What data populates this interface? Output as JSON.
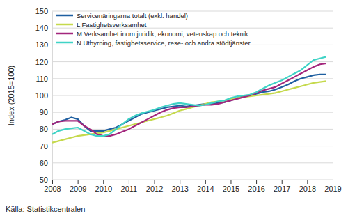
{
  "chart_data": {
    "type": "line",
    "y_label": "Index (2015=100)",
    "source": "Källa: Statistikcentralen",
    "x": [
      2008,
      2008.25,
      2008.5,
      2008.75,
      2009,
      2009.25,
      2009.5,
      2009.75,
      2010,
      2010.25,
      2010.5,
      2010.75,
      2011,
      2011.25,
      2011.5,
      2011.75,
      2012,
      2012.25,
      2012.5,
      2012.75,
      2013,
      2013.25,
      2013.5,
      2013.75,
      2014,
      2014.25,
      2014.5,
      2014.75,
      2015,
      2015.25,
      2015.5,
      2015.75,
      2016,
      2016.25,
      2016.5,
      2016.75,
      2017,
      2017.25,
      2017.5,
      2017.75,
      2018,
      2018.25,
      2018.5,
      2018.75
    ],
    "series": [
      {
        "name": "Servicenäringarna totalt (exkl. handel)",
        "color": "#1f5fa0",
        "values": [
          83,
          84.5,
          85.5,
          87,
          86,
          82,
          79,
          79,
          79,
          80,
          81,
          83,
          85,
          87,
          89,
          90,
          91,
          92,
          93,
          93.5,
          94,
          93.5,
          94,
          94.5,
          95,
          95,
          95.5,
          96,
          97,
          98.5,
          99.5,
          100,
          101,
          102,
          102.5,
          103.5,
          105,
          106.5,
          108.5,
          110,
          111,
          112,
          112.5,
          112.5
        ]
      },
      {
        "name": "L Fastighetsverksamhet",
        "color": "#c5d94c",
        "values": [
          72,
          73,
          74,
          75,
          76,
          76.5,
          77,
          77.5,
          78,
          79,
          80,
          81,
          82,
          83,
          84,
          85,
          86,
          87,
          88,
          89.5,
          91,
          92,
          93,
          94,
          95,
          96,
          96.5,
          97,
          98,
          98.5,
          99,
          99.5,
          100,
          100.5,
          101,
          101.5,
          102.5,
          103.5,
          104.5,
          105.5,
          106.5,
          107.5,
          108,
          108.5
        ]
      },
      {
        "name": "M Verksamhet inom juridik, ekonomi, vetenskap och teknik",
        "color": "#a3267c",
        "values": [
          83,
          84.5,
          85,
          85,
          85,
          82,
          80,
          77,
          76,
          76,
          77,
          78.5,
          80,
          82,
          84,
          86,
          88,
          90,
          91.5,
          92.5,
          93,
          93,
          93.5,
          94,
          94.5,
          94.5,
          95,
          96,
          97,
          98,
          99,
          100,
          101.5,
          103,
          104,
          105,
          107,
          109,
          111,
          113,
          115,
          117,
          118.5,
          119
        ]
      },
      {
        "name": "N Uthyrning, fastighetsservice, rese- och andra stödtjänster",
        "color": "#3fd3c6",
        "values": [
          77,
          79,
          80,
          80.5,
          81,
          79,
          77,
          76,
          76,
          77,
          80,
          83,
          86,
          88,
          89.5,
          90.5,
          91.5,
          93,
          94,
          95,
          95.5,
          95,
          94.5,
          94,
          94.5,
          95.5,
          96.5,
          97,
          98.5,
          99.5,
          100,
          100.5,
          102,
          104,
          106,
          107.5,
          109,
          111,
          113,
          115,
          118,
          121,
          122,
          123
        ]
      }
    ],
    "xlim": [
      2008,
      2019
    ],
    "xticks": [
      2008,
      2009,
      2010,
      2011,
      2012,
      2013,
      2014,
      2015,
      2016,
      2017,
      2018,
      2019
    ],
    "ylim": [
      50,
      150
    ],
    "yticks": [
      50,
      60,
      70,
      80,
      90,
      100,
      110,
      120,
      130,
      140,
      150
    ],
    "grid": true,
    "legend": "top-left"
  }
}
